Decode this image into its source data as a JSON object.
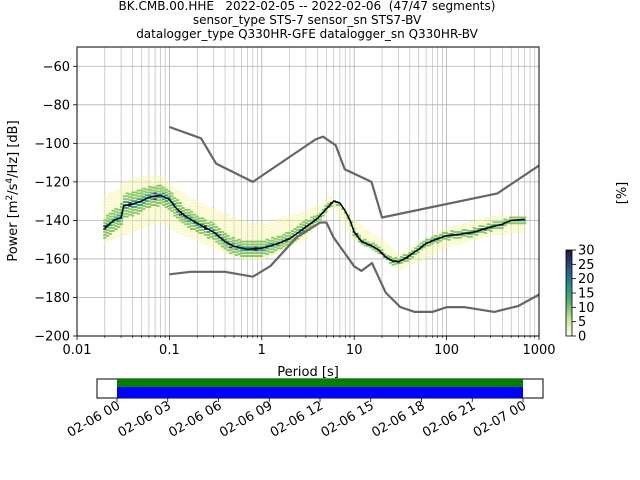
{
  "title": {
    "line1": "BK.CMB.00.HHE   2022-02-05 -- 2022-02-06  (47/47 segments)",
    "line2": "sensor_type STS-7 sensor_sn STS7-BV",
    "line3": "datalogger_type Q330HR-GFE datalogger_sn Q330HR-BV"
  },
  "chart_data": {
    "type": "heatmap",
    "xlabel": "Period [s]",
    "xscale": "log",
    "xlim": [
      0.01,
      1000
    ],
    "xticks": [
      0.01,
      0.1,
      1,
      10,
      100,
      1000
    ],
    "xtick_labels": [
      "0.01",
      "0.1",
      "1",
      "10",
      "100",
      "1000"
    ],
    "ylabel_parts": [
      "Power [m",
      "2",
      "/s",
      "4",
      "/Hz] [dB]"
    ],
    "ylim": [
      -200,
      -50
    ],
    "yticks": [
      -200,
      -180,
      -160,
      -140,
      -120,
      -100,
      -80,
      -60
    ],
    "ytick_labels": [
      "−200",
      "−180",
      "−160",
      "−140",
      "−120",
      "−100",
      "−80",
      "−60"
    ],
    "grid": true,
    "colorbar": {
      "label": "[%]",
      "range": [
        0,
        30
      ],
      "ticks": [
        0,
        5,
        10,
        15,
        20,
        25,
        30
      ],
      "tick_labels": [
        "0",
        "5",
        "10",
        "15",
        "20",
        "25",
        "30"
      ]
    },
    "series": [
      {
        "role": "NHNM",
        "color": "#666666",
        "points": [
          [
            0.1,
            -91.5
          ],
          [
            0.22,
            -97.4
          ],
          [
            0.32,
            -110.5
          ],
          [
            0.8,
            -120
          ],
          [
            3.8,
            -98
          ],
          [
            4.6,
            -96.5
          ],
          [
            6.3,
            -101
          ],
          [
            7.9,
            -113.5
          ],
          [
            15.4,
            -120
          ],
          [
            20,
            -138.5
          ],
          [
            354.8,
            -126
          ],
          [
            1000,
            -111.5
          ]
        ]
      },
      {
        "role": "NLNM",
        "color": "#666666",
        "points": [
          [
            0.1,
            -168
          ],
          [
            0.17,
            -166.7
          ],
          [
            0.4,
            -166.7
          ],
          [
            0.8,
            -169.2
          ],
          [
            1.24,
            -163.7
          ],
          [
            2.4,
            -148.6
          ],
          [
            4.3,
            -141.1
          ],
          [
            5,
            -141.1
          ],
          [
            6,
            -149
          ],
          [
            10,
            -163.8
          ],
          [
            12,
            -166.2
          ],
          [
            15.6,
            -162.1
          ],
          [
            21.9,
            -177.5
          ],
          [
            31.6,
            -185
          ],
          [
            45,
            -187.5
          ],
          [
            70,
            -187.5
          ],
          [
            101,
            -185
          ],
          [
            154,
            -185
          ],
          [
            328,
            -187.5
          ],
          [
            600,
            -184.4
          ],
          [
            1000,
            -178.5
          ]
        ]
      },
      {
        "role": "mean",
        "color": "#000000",
        "points": [
          [
            0.02,
            -144
          ],
          [
            0.025,
            -140
          ],
          [
            0.03,
            -138.5
          ],
          [
            0.032,
            -132.5
          ],
          [
            0.04,
            -131.5
          ],
          [
            0.05,
            -130
          ],
          [
            0.06,
            -128
          ],
          [
            0.08,
            -127
          ],
          [
            0.1,
            -129
          ],
          [
            0.12,
            -134
          ],
          [
            0.15,
            -138
          ],
          [
            0.2,
            -141.5
          ],
          [
            0.3,
            -146
          ],
          [
            0.4,
            -151
          ],
          [
            0.5,
            -153.5
          ],
          [
            0.7,
            -155
          ],
          [
            1,
            -154.5
          ],
          [
            1.5,
            -152
          ],
          [
            2,
            -149.5
          ],
          [
            3,
            -143.5
          ],
          [
            4,
            -139
          ],
          [
            5,
            -134
          ],
          [
            6,
            -130
          ],
          [
            7,
            -131
          ],
          [
            8,
            -135
          ],
          [
            9,
            -140
          ],
          [
            10,
            -146
          ],
          [
            12,
            -151
          ],
          [
            15,
            -153
          ],
          [
            18,
            -155
          ],
          [
            22,
            -159
          ],
          [
            26,
            -161
          ],
          [
            30,
            -161.5
          ],
          [
            35,
            -160
          ],
          [
            40,
            -158
          ],
          [
            50,
            -155
          ],
          [
            60,
            -152
          ],
          [
            80,
            -149.5
          ],
          [
            100,
            -148
          ],
          [
            150,
            -147
          ],
          [
            200,
            -146
          ],
          [
            300,
            -143.5
          ],
          [
            400,
            -142
          ],
          [
            500,
            -140
          ],
          [
            700,
            -139.5
          ]
        ]
      }
    ],
    "pdf_spread": {
      "color_low": "#f5f5a0",
      "color_mid": "#7fc44e",
      "color_high": "#1f9a7a",
      "color_peak": "#3b1f4f",
      "bands": [
        [
          0.02,
          -152,
          -128
        ],
        [
          0.04,
          -146,
          -118
        ],
        [
          0.08,
          -140,
          -116
        ],
        [
          0.12,
          -146,
          -124
        ],
        [
          0.3,
          -154,
          -134
        ],
        [
          0.6,
          -160,
          -140
        ],
        [
          1,
          -161,
          -142
        ],
        [
          3,
          -150,
          -135
        ],
        [
          6,
          -133,
          -127
        ],
        [
          10,
          -150,
          -140
        ],
        [
          20,
          -158,
          -150
        ],
        [
          30,
          -166,
          -157
        ],
        [
          60,
          -160,
          -150
        ],
        [
          100,
          -154,
          -144
        ],
        [
          300,
          -148,
          -138
        ],
        [
          700,
          -146,
          -137
        ]
      ]
    }
  },
  "timeline": {
    "tick_labels": [
      "02-06 00",
      "02-06 03",
      "02-06 06",
      "02-06 09",
      "02-06 12",
      "02-06 15",
      "02-06 18",
      "02-06 21",
      "02-07 00"
    ],
    "coverage_colors": {
      "top": "#008000",
      "bottom": "#0000ff"
    }
  }
}
